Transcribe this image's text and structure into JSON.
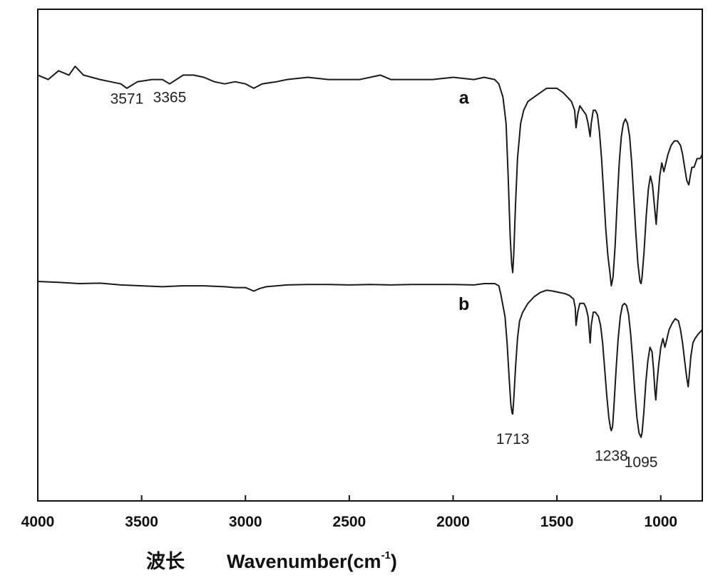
{
  "chart_data": {
    "type": "line",
    "title": "",
    "xlabel": {
      "prefix": "波长",
      "main": "Wavenumber(cm",
      "superscript": "-1",
      "suffix": ")"
    },
    "ylabel": "",
    "xlim": [
      4000,
      800
    ],
    "x_reversed": true,
    "x_ticks": [
      4000,
      3500,
      3000,
      2500,
      2000,
      1500,
      1000
    ],
    "x_tick_labels": [
      "4000",
      "3500",
      "3000",
      "2500",
      "2000",
      "1500",
      "1000"
    ],
    "y_ticks_shown": false,
    "grid": false,
    "legend": "none",
    "series": [
      {
        "name": "a",
        "color": "#1a1a1a",
        "points": [
          [
            4000,
            85
          ],
          [
            3950,
            84
          ],
          [
            3900,
            86
          ],
          [
            3850,
            85
          ],
          [
            3820,
            87
          ],
          [
            3780,
            85
          ],
          [
            3700,
            84
          ],
          [
            3650,
            83.5
          ],
          [
            3600,
            83
          ],
          [
            3571,
            82
          ],
          [
            3520,
            83.5
          ],
          [
            3450,
            84
          ],
          [
            3400,
            84
          ],
          [
            3365,
            83
          ],
          [
            3300,
            85
          ],
          [
            3250,
            85
          ],
          [
            3200,
            84.5
          ],
          [
            3150,
            83.5
          ],
          [
            3100,
            83
          ],
          [
            3050,
            83.5
          ],
          [
            3000,
            83
          ],
          [
            2960,
            82
          ],
          [
            2920,
            83
          ],
          [
            2850,
            83.5
          ],
          [
            2800,
            84
          ],
          [
            2700,
            84.5
          ],
          [
            2600,
            84
          ],
          [
            2500,
            84
          ],
          [
            2450,
            84
          ],
          [
            2400,
            84.5
          ],
          [
            2350,
            85
          ],
          [
            2300,
            84
          ],
          [
            2200,
            84
          ],
          [
            2100,
            84
          ],
          [
            2000,
            84.5
          ],
          [
            1900,
            84
          ],
          [
            1850,
            84.5
          ],
          [
            1800,
            84
          ],
          [
            1780,
            83
          ],
          [
            1760,
            80
          ],
          [
            1745,
            74
          ],
          [
            1735,
            62
          ],
          [
            1725,
            48
          ],
          [
            1718,
            42
          ],
          [
            1713,
            40
          ],
          [
            1708,
            44
          ],
          [
            1700,
            55
          ],
          [
            1690,
            66
          ],
          [
            1675,
            74
          ],
          [
            1660,
            77
          ],
          [
            1640,
            79
          ],
          [
            1610,
            80
          ],
          [
            1580,
            81
          ],
          [
            1550,
            82
          ],
          [
            1500,
            82
          ],
          [
            1470,
            81
          ],
          [
            1450,
            80
          ],
          [
            1430,
            79
          ],
          [
            1415,
            77
          ],
          [
            1408,
            73
          ],
          [
            1400,
            76
          ],
          [
            1390,
            78
          ],
          [
            1375,
            77
          ],
          [
            1360,
            76
          ],
          [
            1350,
            74
          ],
          [
            1340,
            71
          ],
          [
            1335,
            74
          ],
          [
            1325,
            77
          ],
          [
            1315,
            77
          ],
          [
            1305,
            76
          ],
          [
            1295,
            72
          ],
          [
            1285,
            66
          ],
          [
            1275,
            58
          ],
          [
            1265,
            50
          ],
          [
            1255,
            44
          ],
          [
            1245,
            40
          ],
          [
            1238,
            37
          ],
          [
            1230,
            39
          ],
          [
            1220,
            46
          ],
          [
            1210,
            56
          ],
          [
            1200,
            65
          ],
          [
            1190,
            71
          ],
          [
            1180,
            74
          ],
          [
            1170,
            75
          ],
          [
            1160,
            74
          ],
          [
            1150,
            71
          ],
          [
            1140,
            65
          ],
          [
            1130,
            57
          ],
          [
            1120,
            49
          ],
          [
            1110,
            42
          ],
          [
            1100,
            38
          ],
          [
            1095,
            37.5
          ],
          [
            1090,
            39
          ],
          [
            1080,
            45
          ],
          [
            1070,
            53
          ],
          [
            1060,
            59
          ],
          [
            1050,
            62
          ],
          [
            1040,
            60
          ],
          [
            1030,
            55
          ],
          [
            1022,
            51
          ],
          [
            1015,
            56
          ],
          [
            1005,
            62
          ],
          [
            995,
            65
          ],
          [
            985,
            63
          ],
          [
            975,
            65
          ],
          [
            965,
            67
          ],
          [
            950,
            69
          ],
          [
            935,
            70
          ],
          [
            920,
            70
          ],
          [
            905,
            69
          ],
          [
            895,
            67
          ],
          [
            885,
            64
          ],
          [
            875,
            61
          ],
          [
            865,
            60
          ],
          [
            858,
            62
          ],
          [
            850,
            64
          ],
          [
            840,
            64
          ],
          [
            825,
            66
          ],
          [
            810,
            66
          ],
          [
            800,
            67
          ]
        ]
      },
      {
        "name": "b",
        "color": "#1a1a1a",
        "points": [
          [
            4000,
            38
          ],
          [
            3900,
            37.8
          ],
          [
            3800,
            37.5
          ],
          [
            3700,
            37.6
          ],
          [
            3600,
            37.2
          ],
          [
            3500,
            37
          ],
          [
            3400,
            36.8
          ],
          [
            3300,
            37
          ],
          [
            3200,
            37
          ],
          [
            3100,
            36.8
          ],
          [
            3050,
            36.6
          ],
          [
            3000,
            36.6
          ],
          [
            2960,
            35.8
          ],
          [
            2930,
            36.4
          ],
          [
            2900,
            36.8
          ],
          [
            2800,
            37.2
          ],
          [
            2700,
            37.3
          ],
          [
            2600,
            37.3
          ],
          [
            2500,
            37.2
          ],
          [
            2400,
            37.3
          ],
          [
            2300,
            37.2
          ],
          [
            2200,
            37.3
          ],
          [
            2100,
            37.3
          ],
          [
            2000,
            37.3
          ],
          [
            1900,
            37.2
          ],
          [
            1850,
            37.5
          ],
          [
            1800,
            37.5
          ],
          [
            1780,
            37
          ],
          [
            1770,
            35
          ],
          [
            1750,
            30
          ],
          [
            1740,
            24
          ],
          [
            1730,
            16
          ],
          [
            1722,
            10
          ],
          [
            1716,
            8
          ],
          [
            1713,
            7.8
          ],
          [
            1708,
            11
          ],
          [
            1700,
            18
          ],
          [
            1690,
            25
          ],
          [
            1680,
            29
          ],
          [
            1665,
            31
          ],
          [
            1640,
            33
          ],
          [
            1610,
            34.5
          ],
          [
            1580,
            35.5
          ],
          [
            1550,
            36
          ],
          [
            1520,
            35.8
          ],
          [
            1490,
            35.5
          ],
          [
            1460,
            35.2
          ],
          [
            1440,
            34.8
          ],
          [
            1420,
            34
          ],
          [
            1412,
            32
          ],
          [
            1408,
            28
          ],
          [
            1400,
            31
          ],
          [
            1390,
            33
          ],
          [
            1370,
            33
          ],
          [
            1360,
            32
          ],
          [
            1350,
            30
          ],
          [
            1345,
            27
          ],
          [
            1340,
            24
          ],
          [
            1335,
            28
          ],
          [
            1325,
            31
          ],
          [
            1315,
            31
          ],
          [
            1300,
            30
          ],
          [
            1290,
            28
          ],
          [
            1280,
            24
          ],
          [
            1270,
            18
          ],
          [
            1260,
            12
          ],
          [
            1250,
            7
          ],
          [
            1242,
            4.5
          ],
          [
            1238,
            4
          ],
          [
            1232,
            5
          ],
          [
            1225,
            10
          ],
          [
            1215,
            18
          ],
          [
            1205,
            25
          ],
          [
            1195,
            30
          ],
          [
            1185,
            32.5
          ],
          [
            1175,
            33
          ],
          [
            1165,
            32.5
          ],
          [
            1155,
            30.5
          ],
          [
            1145,
            26
          ],
          [
            1135,
            20
          ],
          [
            1125,
            13
          ],
          [
            1115,
            7
          ],
          [
            1105,
            3.5
          ],
          [
            1098,
            2.8
          ],
          [
            1095,
            2.5
          ],
          [
            1090,
            3.5
          ],
          [
            1082,
            8
          ],
          [
            1072,
            15
          ],
          [
            1062,
            20
          ],
          [
            1052,
            23
          ],
          [
            1042,
            22
          ],
          [
            1035,
            18
          ],
          [
            1028,
            13
          ],
          [
            1024,
            11
          ],
          [
            1018,
            15
          ],
          [
            1010,
            19
          ],
          [
            1000,
            23
          ],
          [
            990,
            25
          ],
          [
            980,
            23
          ],
          [
            970,
            25
          ],
          [
            960,
            27
          ],
          [
            945,
            28.5
          ],
          [
            930,
            29.5
          ],
          [
            915,
            29
          ],
          [
            905,
            27
          ],
          [
            895,
            24
          ],
          [
            885,
            20
          ],
          [
            875,
            16
          ],
          [
            868,
            14
          ],
          [
            862,
            17
          ],
          [
            855,
            21
          ],
          [
            845,
            24
          ],
          [
            835,
            25
          ],
          [
            820,
            26
          ],
          [
            810,
            26.5
          ],
          [
            800,
            27
          ]
        ]
      }
    ],
    "series_labels": [
      {
        "text": "a",
        "x": 1948,
        "y": 78.5
      },
      {
        "text": "b",
        "x": 1948,
        "y": 31.5
      }
    ],
    "annotations": [
      {
        "text": "3571",
        "x": 3571,
        "y": 78.5
      },
      {
        "text": "3365",
        "x": 3365,
        "y": 78.8
      },
      {
        "text": "1713",
        "x": 1713,
        "y": 1
      },
      {
        "text": "1238",
        "x": 1238,
        "y": -2.8
      },
      {
        "text": "1095",
        "x": 1095,
        "y": -4.3
      }
    ],
    "ylim": [
      -12,
      100
    ]
  }
}
